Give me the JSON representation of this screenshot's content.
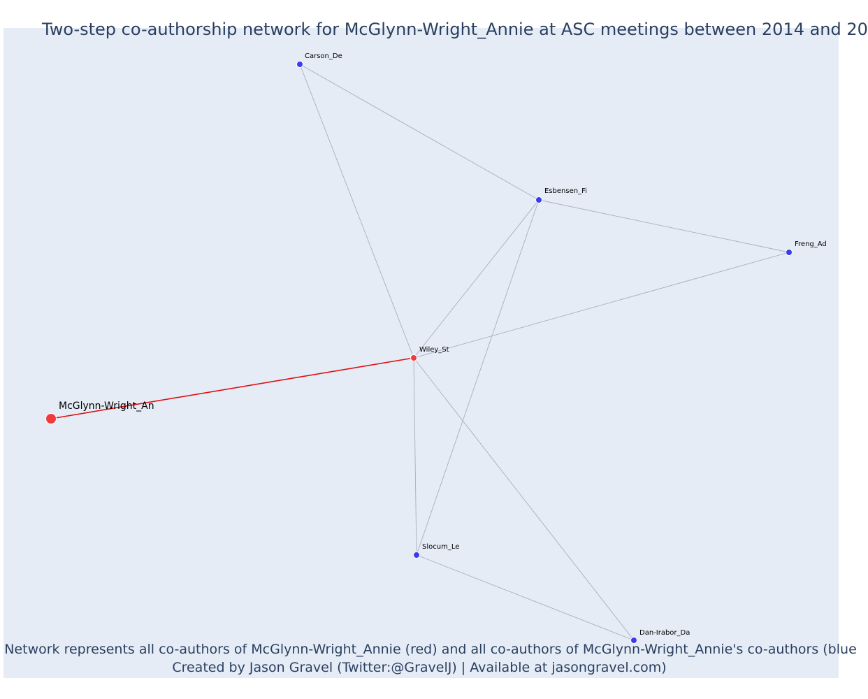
{
  "title": "Two-step co-authorship network for McGlynn-Wright_Annie at ASC meetings between 2014 and 20",
  "caption": {
    "line1": "Network represents all co-authors of McGlynn-Wright_Annie (red) and all co-authors of McGlynn-Wright_Annie's co-authors (blue",
    "line2": "Created by Jason Gravel (Twitter:@GravelJ) | Available at jasongravel.com)"
  },
  "colors": {
    "focal_node": "#ef3b3b",
    "direct_node": "#ef3b3b",
    "indirect_node": "#3b3bef",
    "direct_edge": "#e01010",
    "indirect_edge": "#a9adbf",
    "plot_background": "#e5ecf6"
  },
  "nodes": [
    {
      "id": "mcglynn",
      "label": "McGlynn-Wright_An",
      "role": "focal"
    },
    {
      "id": "wiley",
      "label": "Wiley_St",
      "role": "direct"
    },
    {
      "id": "carson",
      "label": "Carson_De",
      "role": "indirect"
    },
    {
      "id": "esbensen",
      "label": "Esbensen_Fi",
      "role": "indirect"
    },
    {
      "id": "freng",
      "label": "Freng_Ad",
      "role": "indirect"
    },
    {
      "id": "slocum",
      "label": "Slocum_Le",
      "role": "indirect"
    },
    {
      "id": "danirabor",
      "label": "Dan-Irabor_Da",
      "role": "indirect"
    }
  ],
  "edges": [
    {
      "source": "mcglynn",
      "target": "wiley",
      "type": "direct"
    },
    {
      "source": "wiley",
      "target": "carson",
      "type": "indirect"
    },
    {
      "source": "wiley",
      "target": "esbensen",
      "type": "indirect"
    },
    {
      "source": "wiley",
      "target": "freng",
      "type": "indirect"
    },
    {
      "source": "wiley",
      "target": "slocum",
      "type": "indirect"
    },
    {
      "source": "wiley",
      "target": "danirabor",
      "type": "indirect"
    },
    {
      "source": "carson",
      "target": "esbensen",
      "type": "indirect"
    },
    {
      "source": "esbensen",
      "target": "freng",
      "type": "indirect"
    },
    {
      "source": "esbensen",
      "target": "slocum",
      "type": "indirect"
    },
    {
      "source": "slocum",
      "target": "danirabor",
      "type": "indirect"
    }
  ]
}
